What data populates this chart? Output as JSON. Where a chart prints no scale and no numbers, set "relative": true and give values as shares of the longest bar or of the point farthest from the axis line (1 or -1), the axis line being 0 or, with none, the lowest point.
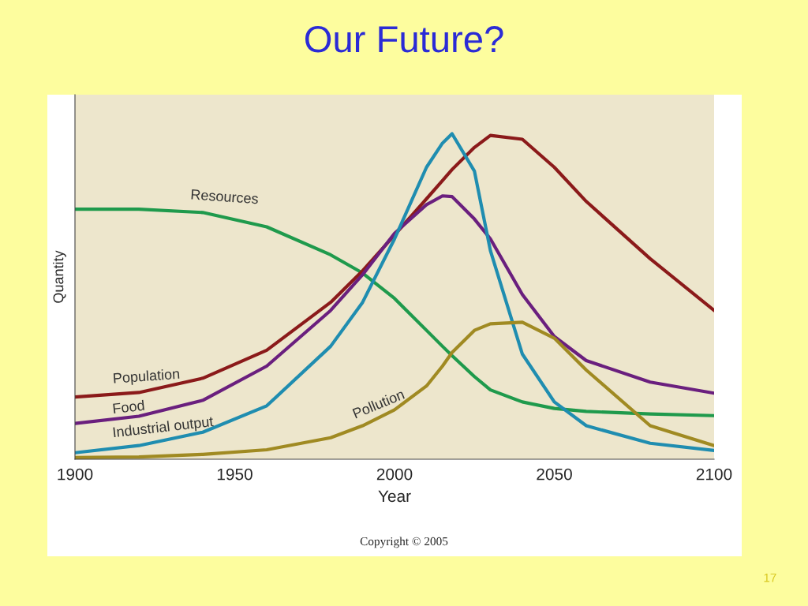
{
  "chart_data": {
    "type": "line",
    "title": "Our Future?",
    "xlabel": "Year",
    "ylabel": "Quantity",
    "relative": true,
    "x": [
      1900,
      1920,
      1940,
      1960,
      1980,
      1990,
      2000,
      2010,
      2015,
      2018,
      2025,
      2030,
      2040,
      2050,
      2060,
      2080,
      2100
    ],
    "xlim": [
      1900,
      2100
    ],
    "xticks": [
      1900,
      1950,
      2000,
      2050,
      2100
    ],
    "series": [
      {
        "name": "Resources",
        "color": "#1f9a4c",
        "values": [
          0.768,
          0.768,
          0.758,
          0.714,
          0.628,
          0.572,
          0.494,
          0.396,
          0.347,
          0.318,
          0.254,
          0.213,
          0.176,
          0.156,
          0.147,
          0.139,
          0.134
        ]
      },
      {
        "name": "Population",
        "color": "#8b1a1a",
        "values": [
          0.191,
          0.205,
          0.249,
          0.335,
          0.482,
          0.579,
          0.689,
          0.8,
          0.856,
          0.89,
          0.958,
          0.995,
          0.983,
          0.897,
          0.792,
          0.616,
          0.457
        ]
      },
      {
        "name": "Food",
        "color": "#6a1f7e",
        "values": [
          0.11,
          0.132,
          0.181,
          0.286,
          0.457,
          0.567,
          0.694,
          0.782,
          0.809,
          0.807,
          0.738,
          0.677,
          0.506,
          0.377,
          0.303,
          0.237,
          0.203
        ]
      },
      {
        "name": "Industrial output",
        "color": "#1f8db0",
        "values": [
          0.02,
          0.042,
          0.083,
          0.164,
          0.347,
          0.482,
          0.677,
          0.897,
          0.971,
          1.0,
          0.885,
          0.641,
          0.323,
          0.176,
          0.103,
          0.049,
          0.027
        ]
      },
      {
        "name": "Pollution",
        "color": "#a08a22",
        "values": [
          0.005,
          0.007,
          0.015,
          0.029,
          0.066,
          0.103,
          0.152,
          0.225,
          0.286,
          0.328,
          0.396,
          0.416,
          0.421,
          0.372,
          0.274,
          0.103,
          0.042
        ]
      }
    ],
    "grid": false,
    "legend": false,
    "annotations": [
      "Copyright © 2005",
      "17"
    ]
  }
}
